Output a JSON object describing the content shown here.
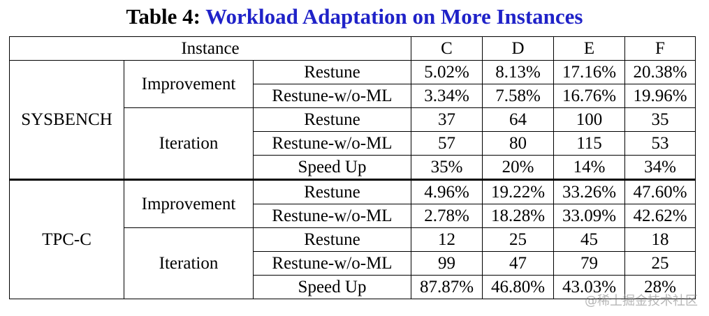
{
  "title": {
    "label": "Table 4:",
    "text": "Workload Adaptation on More Instances"
  },
  "table": {
    "header": {
      "instance": "Instance",
      "columns": [
        "C",
        "D",
        "E",
        "F"
      ]
    },
    "groups": [
      {
        "name": "SYSBENCH",
        "sections": [
          {
            "name": "Improvement",
            "rows": [
              {
                "method": "Restune",
                "values": [
                  "5.02%",
                  "8.13%",
                  "17.16%",
                  "20.38%"
                ]
              },
              {
                "method": "Restune-w/o-ML",
                "values": [
                  "3.34%",
                  "7.58%",
                  "16.76%",
                  "19.96%"
                ]
              }
            ]
          },
          {
            "name": "Iteration",
            "rows": [
              {
                "method": "Restune",
                "values": [
                  "37",
                  "64",
                  "100",
                  "35"
                ]
              },
              {
                "method": "Restune-w/o-ML",
                "values": [
                  "57",
                  "80",
                  "115",
                  "53"
                ]
              },
              {
                "method": "Speed Up",
                "values": [
                  "35%",
                  "20%",
                  "14%",
                  "34%"
                ]
              }
            ]
          }
        ]
      },
      {
        "name": "TPC-C",
        "sections": [
          {
            "name": "Improvement",
            "rows": [
              {
                "method": "Restune",
                "values": [
                  "4.96%",
                  "19.22%",
                  "33.26%",
                  "47.60%"
                ]
              },
              {
                "method": "Restune-w/o-ML",
                "values": [
                  "2.78%",
                  "18.28%",
                  "33.09%",
                  "42.62%"
                ]
              }
            ]
          },
          {
            "name": "Iteration",
            "rows": [
              {
                "method": "Restune",
                "values": [
                  "12",
                  "25",
                  "45",
                  "18"
                ]
              },
              {
                "method": "Restune-w/o-ML",
                "values": [
                  "99",
                  "47",
                  "79",
                  "25"
                ]
              },
              {
                "method": "Speed Up",
                "values": [
                  "87.87%",
                  "46.80%",
                  "43.03%",
                  "28%"
                ]
              }
            ]
          }
        ]
      }
    ]
  },
  "watermark": "@稀土掘金技术社区"
}
